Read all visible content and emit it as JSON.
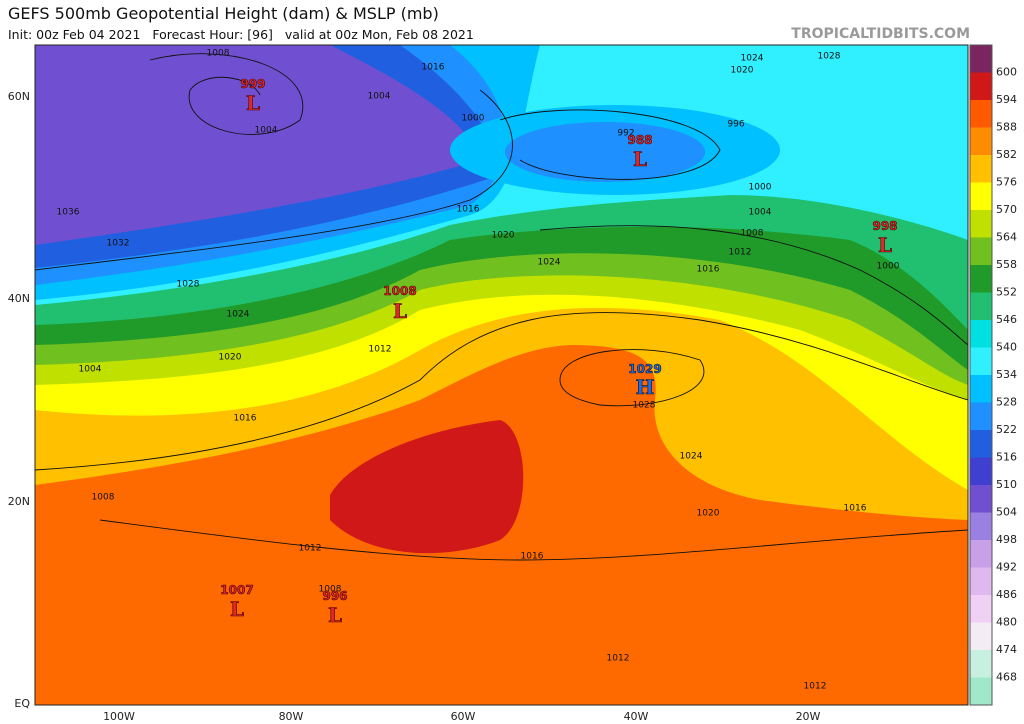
{
  "header": {
    "title": "GEFS 500mb Geopotential Height (dam) & MSLP (mb)",
    "subtitle": "Init: 00z Feb 04 2021   Forecast Hour: [96]   valid at 00z Mon, Feb 08 2021",
    "watermark": "TROPICALTIDBITS.COM"
  },
  "colorbar": {
    "levels": [
      600,
      594,
      588,
      582,
      576,
      570,
      564,
      558,
      552,
      546,
      540,
      534,
      528,
      522,
      516,
      510,
      504,
      498,
      492,
      486,
      480,
      474,
      468
    ],
    "colors": [
      "#7a2560",
      "#d01818",
      "#ff5a00",
      "#ff8c00",
      "#ffc000",
      "#ffff00",
      "#c0e000",
      "#70c020",
      "#209a28",
      "#20c070",
      "#00e0e0",
      "#30f0ff",
      "#00c0ff",
      "#1e90ff",
      "#2060e0",
      "#4040d0",
      "#7050d0",
      "#9a80e0",
      "#c8a0e8",
      "#e0b8f0",
      "#f0d0f4",
      "#f4ecf4",
      "#c8f0e0",
      "#a0e8c8"
    ]
  },
  "axes": {
    "lon_labels": [
      "100W",
      "80W",
      "60W",
      "40W",
      "20W"
    ],
    "lat_labels": [
      "60N",
      "40N",
      "20N",
      "EQ"
    ]
  },
  "centers": [
    {
      "value": "999",
      "letter": "L"
    },
    {
      "value": "988",
      "letter": "L"
    },
    {
      "value": "998",
      "letter": "L"
    },
    {
      "value": "1008",
      "letter": "L"
    },
    {
      "value": "1029",
      "letter": "H"
    },
    {
      "value": "1007",
      "letter": "L"
    },
    {
      "value": "996",
      "letter": "L"
    }
  ],
  "isobar_labels": [
    "1008",
    "1016",
    "1024",
    "1028",
    "1020",
    "1004",
    "1004",
    "1000",
    "996",
    "992",
    "1000",
    "1004",
    "1008",
    "1012",
    "1016",
    "1000",
    "1036",
    "1032",
    "1028",
    "1024",
    "1020",
    "1004",
    "1016",
    "1020",
    "1024",
    "1012",
    "1016",
    "1028",
    "1024",
    "1020",
    "1016",
    "1016",
    "1012",
    "1008",
    "1008",
    "1012",
    "1012"
  ]
}
